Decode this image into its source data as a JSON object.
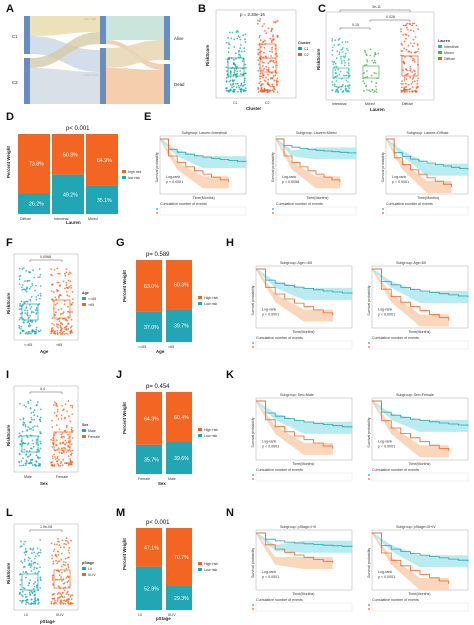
{
  "figure": {
    "panels": {
      "A": {
        "letter": "A",
        "left_labels": [
          "C1",
          "C2"
        ],
        "mid_labels": [
          "low risk",
          "high risk"
        ],
        "right_labels": [
          "Alive",
          "Dead"
        ]
      },
      "B": {
        "letter": "B",
        "pval": "p = 2.33e-16",
        "ylabel": "RiskScore",
        "xlabel": "Cluster",
        "legend_title": "Cluster",
        "legend": [
          "C1",
          "C2"
        ],
        "xticks": [
          "C1",
          "C2"
        ]
      },
      "C": {
        "letter": "C",
        "brackets": [
          "0.15",
          "0.028",
          "3e-11"
        ],
        "ylabel": "RiskScore",
        "xlabel": "Lauren",
        "legend_title": "Lauren",
        "legend": [
          "Intestinal",
          "Mixed",
          "Diffuse"
        ],
        "xticks": [
          "Intestinal",
          "Mixed",
          "Diffuse"
        ]
      },
      "D": {
        "letter": "D",
        "pval": "p< 0.001",
        "ylabel": "Percent Weight",
        "xlabel": "Lauren",
        "legend": [
          "high risk",
          "low risk"
        ]
      },
      "E": {
        "letter": "E",
        "subtitles": [
          "Subgroup: Lauren=Intestinal",
          "Subgroup: Lauren=Mixed",
          "Subgroup: Lauren=Diffuse"
        ],
        "ylabel": "Survival probability",
        "xlabel": "Time(Months)",
        "logrank": "Log-rank",
        "pvals": [
          "p < 0.0001",
          "p = 0.0058",
          "p < 0.0001"
        ],
        "table_title": "Cumulative number of events",
        "risk_legend": [
          "low",
          "high"
        ]
      },
      "F": {
        "letter": "F",
        "pval": "0.0068",
        "ylabel": "RiskScore",
        "xlabel": "Age",
        "legend_title": "Age",
        "legend": [
          "<=65",
          ">65"
        ],
        "xticks": [
          "<=65",
          ">65"
        ]
      },
      "G": {
        "letter": "G",
        "pval": "p= 0.589",
        "ylabel": "Percent Weight",
        "xlabel": "Age",
        "legend": [
          "High risk",
          "Low risk"
        ]
      },
      "H": {
        "letter": "H",
        "subtitles": [
          "Subgroup: Age<=65",
          "Subgroup: Age>65"
        ],
        "ylabel": "Survival probability",
        "xlabel": "Time(Months)",
        "logrank": "Log-rank",
        "pvals": [
          "p < 0.0001",
          "p < 0.0001"
        ],
        "table_title": "Cumulative number of events",
        "risk_legend": [
          "low",
          "high"
        ]
      },
      "I": {
        "letter": "I",
        "pval": "0.4",
        "ylabel": "RiskScore",
        "xlabel": "Sex",
        "legend_title": "Sex",
        "legend": [
          "Male",
          "Female"
        ],
        "xticks": [
          "Male",
          "Female"
        ]
      },
      "J": {
        "letter": "J",
        "pval": "p= 0.454",
        "ylabel": "Percent Weight",
        "xlabel": "Sex",
        "legend": [
          "High risk",
          "Low risk"
        ]
      },
      "K": {
        "letter": "K",
        "subtitles": [
          "Subgroup: Sex=Male",
          "Subgroup: Sex=Female"
        ],
        "ylabel": "Survival probability",
        "xlabel": "Time(Months)",
        "logrank": "Log-rank",
        "pvals": [
          "p < 0.0001",
          "p < 0.0001"
        ],
        "table_title": "Cumulative number of events",
        "risk_legend": [
          "low",
          "high"
        ]
      },
      "L": {
        "letter": "L",
        "pval": "1.9e-08",
        "ylabel": "RiskScore",
        "xlabel": "pStage",
        "legend_title": "pStage",
        "legend": [
          "I-II",
          "III-IV"
        ],
        "xticks": [
          "I-II",
          "III-IV"
        ]
      },
      "M": {
        "letter": "M",
        "pval": "p< 0.001",
        "ylabel": "Percent Weight",
        "xlabel": "pStage",
        "legend": [
          "High risk",
          "Low risk"
        ]
      },
      "N": {
        "letter": "N",
        "subtitles": [
          "Subgroup: pStage=I+II",
          "Subgroup: pStage=III+IV"
        ],
        "ylabel": "Survival probability",
        "xlabel": "Time(Months)",
        "logrank": "Log-rank",
        "pvals": [
          "p < 0.0001",
          "p < 0.0001"
        ],
        "table_title": "Cumulative number of events",
        "risk_legend": [
          "low",
          "high"
        ]
      }
    },
    "colors": {
      "high": "#f26522",
      "low": "#22a6b3",
      "c1": "#1aa39a",
      "c2": "#f05a28",
      "intestinal": "#2bb5ad",
      "mixed": "#4caf50",
      "diffuse": "#f05a28",
      "ci_low": "#9be3ea",
      "ci_high": "#f7c59f"
    }
  },
  "chart_data": [
    {
      "panel": "D",
      "type": "bar",
      "stacked": true,
      "categories": [
        "Diffuse",
        "Intestinal",
        "Mixed"
      ],
      "series": [
        {
          "name": "high risk",
          "values": [
            73.8,
            50.8,
            64.9
          ]
        },
        {
          "name": "low risk",
          "values": [
            26.2,
            49.2,
            35.1
          ]
        }
      ],
      "ylabel": "Percent Weight",
      "xlabel": "Lauren"
    },
    {
      "panel": "G",
      "type": "bar",
      "stacked": true,
      "categories": [
        "<=65",
        ">65"
      ],
      "series": [
        {
          "name": "High risk",
          "values": [
            63.0,
            60.3
          ]
        },
        {
          "name": "Low risk",
          "values": [
            37.0,
            39.7
          ]
        }
      ],
      "ylabel": "Percent Weight",
      "xlabel": "Age"
    },
    {
      "panel": "J",
      "type": "bar",
      "stacked": true,
      "categories": [
        "Female",
        "Male"
      ],
      "series": [
        {
          "name": "High risk",
          "values": [
            64.3,
            60.4
          ]
        },
        {
          "name": "Low risk",
          "values": [
            35.7,
            39.6
          ]
        }
      ],
      "ylabel": "Percent Weight",
      "xlabel": "Sex"
    },
    {
      "panel": "M",
      "type": "bar",
      "stacked": true,
      "categories": [
        "I-II",
        "III-IV"
      ],
      "series": [
        {
          "name": "High risk",
          "values": [
            47.1,
            70.7
          ]
        },
        {
          "name": "Low risk",
          "values": [
            52.9,
            29.3
          ]
        }
      ],
      "ylabel": "Percent Weight",
      "xlabel": "pStage"
    }
  ]
}
